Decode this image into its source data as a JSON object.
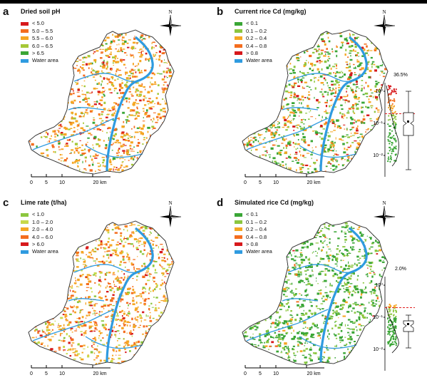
{
  "panels": [
    {
      "letter": "a",
      "title": "Dried soil pH",
      "legend": [
        {
          "label": "< 5.0",
          "color": "#d7191c"
        },
        {
          "label": "5.0 – 5.5",
          "color": "#f46d1e"
        },
        {
          "label": "5.5 – 6.0",
          "color": "#f5a623"
        },
        {
          "label": "6.0 – 6.5",
          "color": "#a6c837"
        },
        {
          "label": "> 6.5",
          "color": "#3aa636"
        },
        {
          "label": "Water area",
          "color": "#2f9be0"
        }
      ]
    },
    {
      "letter": "b",
      "title": "Current rice Cd (mg/kg)",
      "legend": [
        {
          "label": "< 0.1",
          "color": "#3aa636"
        },
        {
          "label": "0.1 – 0.2",
          "color": "#8cc63f"
        },
        {
          "label": "0.2 – 0.4",
          "color": "#f5a623"
        },
        {
          "label": "0.4 – 0.8",
          "color": "#f46d1e"
        },
        {
          "label": "> 0.8",
          "color": "#d7191c"
        },
        {
          "label": "Water area",
          "color": "#2f9be0"
        }
      ]
    },
    {
      "letter": "c",
      "title": "Lime rate (t/ha)",
      "legend": [
        {
          "label": "< 1.0",
          "color": "#8cc63f"
        },
        {
          "label": "1.0 – 2.0",
          "color": "#c8d94a"
        },
        {
          "label": "2.0 – 4.0",
          "color": "#f5a623"
        },
        {
          "label": "4.0 – 6.0",
          "color": "#f46d1e"
        },
        {
          "label": "> 6.0",
          "color": "#d7191c"
        },
        {
          "label": "Water area",
          "color": "#2f9be0"
        }
      ]
    },
    {
      "letter": "d",
      "title": "Simulated rice Cd (mg/kg)",
      "legend": [
        {
          "label": "< 0.1",
          "color": "#3aa636"
        },
        {
          "label": "0.1 – 0.2",
          "color": "#8cc63f"
        },
        {
          "label": "0.2 – 0.4",
          "color": "#f5a623"
        },
        {
          "label": "0.4 – 0.8",
          "color": "#f46d1e"
        },
        {
          "label": "> 0.8",
          "color": "#d7191c"
        },
        {
          "label": "Water area",
          "color": "#2f9be0"
        }
      ]
    }
  ],
  "compass_label": "N",
  "scale": {
    "ticks": [
      "0",
      "5",
      "10",
      "20 km"
    ]
  },
  "insets": [
    {
      "percent": "36.5%",
      "ticks": [
        "10⁰",
        "10⁻¹",
        "10⁻²"
      ],
      "threshold": 0.2
    },
    {
      "percent": "2.0%",
      "ticks": [
        "10⁰",
        "10⁻¹",
        "10⁻²"
      ],
      "threshold": 0.2
    }
  ]
}
